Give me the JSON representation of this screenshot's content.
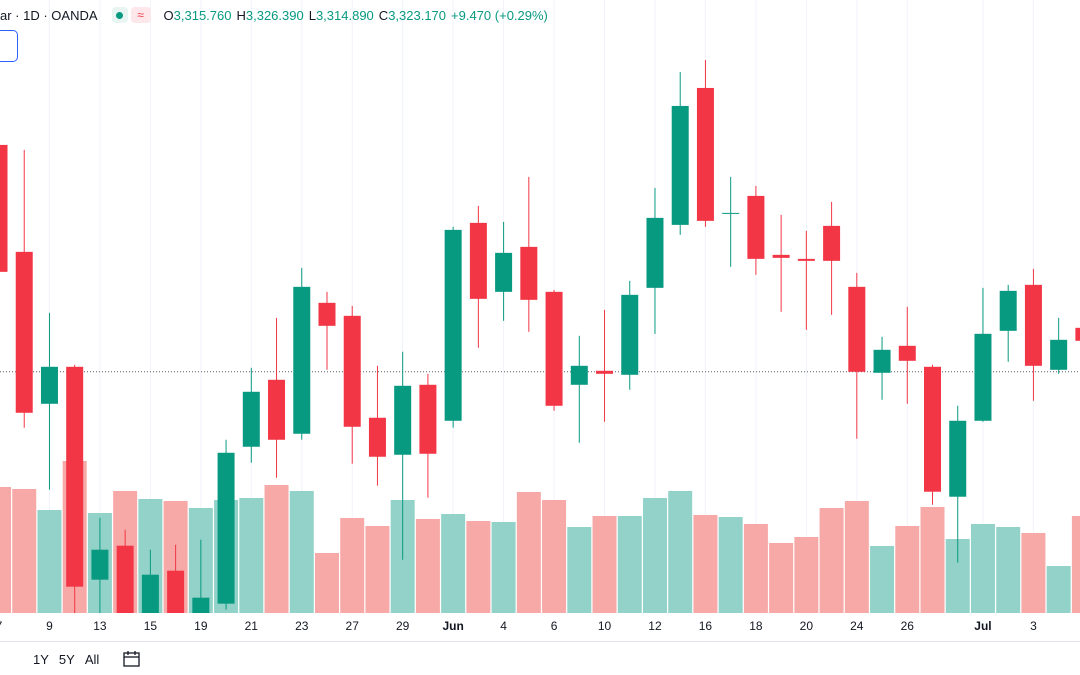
{
  "chart_data": {
    "type": "candlestick",
    "symbol": "ar · 1D · OANDA",
    "ohlc_header": [
      {
        "label": "O",
        "value": "3,315.760"
      },
      {
        "label": "H",
        "value": "3,326.390"
      },
      {
        "label": "L",
        "value": "3,314.890"
      },
      {
        "label": "C",
        "value": "3,323.170"
      }
    ],
    "change": "+9.470 (+0.29%)",
    "categories": [
      "7",
      null,
      "9",
      null,
      "13",
      null,
      "15",
      null,
      "19",
      null,
      "21",
      null,
      "23",
      null,
      "27",
      null,
      "29",
      null,
      "Jun",
      null,
      "4",
      null,
      "6",
      null,
      "10",
      null,
      "12",
      null,
      "16",
      null,
      "18",
      null,
      "20",
      null,
      "24",
      null,
      "26",
      null,
      null,
      "Jul",
      null,
      "3",
      null,
      null
    ],
    "open": [
      3401.0,
      3336.8,
      3245.6,
      3267.8,
      3140.0,
      3160.4,
      3116.0,
      3145.4,
      3113.0,
      3125.6,
      3219.8,
      3260.0,
      3227.6,
      3306.2,
      3298.4,
      3237.2,
      3215.0,
      3257.0,
      3235.4,
      3354.2,
      3312.8,
      3339.8,
      3312.8,
      3257.0,
      3265.4,
      3263.0,
      3315.2,
      3353.0,
      3435.2,
      3359.6,
      3370.4,
      3335.0,
      3332.6,
      3352.4,
      3315.8,
      3264.2,
      3280.4,
      3267.8,
      3189.8,
      3235.4,
      3289.4,
      3317.0,
      3266.0,
      3291.2
    ],
    "high": [
      3404.0,
      3398.0,
      3300.2,
      3269.0,
      3177.2,
      3170.0,
      3158.0,
      3161.0,
      3164.0,
      3224.0,
      3267.2,
      3297.2,
      3327.2,
      3312.8,
      3304.4,
      3268.4,
      3276.8,
      3263.6,
      3351.8,
      3364.4,
      3354.8,
      3381.8,
      3314.0,
      3286.4,
      3302.0,
      3319.4,
      3375.2,
      3444.8,
      3452.0,
      3381.8,
      3376.4,
      3359.0,
      3349.4,
      3366.8,
      3324.2,
      3285.8,
      3303.8,
      3269.0,
      3244.4,
      3315.2,
      3317.0,
      3326.6,
      3297.2,
      3296.0
    ],
    "low": [
      3320.0,
      3231.2,
      3194.0,
      3119.0,
      3119.0,
      3110.0,
      3110.0,
      3104.0,
      3107.0,
      3122.0,
      3210.2,
      3201.2,
      3224.0,
      3266.0,
      3209.6,
      3196.4,
      3152.0,
      3189.2,
      3231.2,
      3279.2,
      3295.4,
      3288.8,
      3241.4,
      3222.2,
      3234.8,
      3254.0,
      3287.6,
      3347.0,
      3351.8,
      3327.8,
      3323.0,
      3300.8,
      3290.0,
      3299.0,
      3224.6,
      3248.0,
      3245.6,
      3185.0,
      3150.2,
      3234.8,
      3270.8,
      3247.4,
      3263.6,
      3281.0
    ],
    "close": [
      3324.8,
      3240.2,
      3267.8,
      3135.8,
      3158.0,
      3116.0,
      3143.0,
      3113.0,
      3129.2,
      3216.2,
      3252.8,
      3224.0,
      3315.8,
      3292.4,
      3231.8,
      3213.8,
      3256.4,
      3215.6,
      3350.0,
      3308.6,
      3336.2,
      3308.0,
      3244.4,
      3268.4,
      3263.6,
      3311.0,
      3357.2,
      3424.4,
      3355.4,
      3360.2,
      3332.6,
      3333.2,
      3331.4,
      3331.4,
      3264.8,
      3278.0,
      3271.4,
      3192.8,
      3235.4,
      3287.6,
      3313.4,
      3268.4,
      3284.0,
      3283.4
    ],
    "volume": [
      126,
      124,
      103,
      152,
      100,
      122,
      114,
      112,
      105,
      113,
      115,
      128,
      122,
      60,
      95,
      87,
      113,
      94,
      99,
      92,
      91,
      121,
      113,
      86,
      97,
      97,
      115,
      122,
      98,
      96,
      89,
      70,
      76,
      105,
      112,
      67,
      87,
      106,
      74,
      89,
      86,
      80,
      47,
      97
    ],
    "ylim": [
      3120,
      3488
    ],
    "volume_lim": [
      0,
      613
    ],
    "price_line": 3264.8,
    "up_color": "#089981",
    "down_color": "#f23645",
    "volume_up_color": "#93d2c8",
    "volume_down_color": "#f7a9a7",
    "grid": true,
    "range_buttons": [
      "1Y",
      "5Y",
      "All"
    ]
  }
}
